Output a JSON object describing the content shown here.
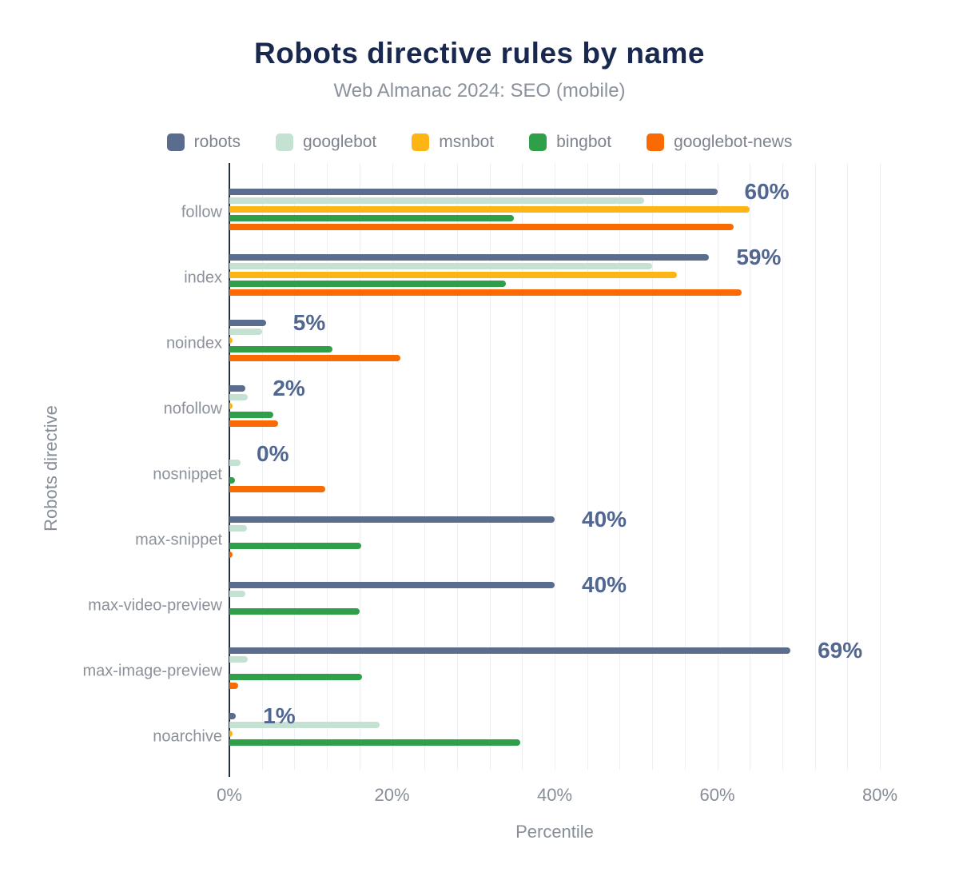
{
  "chart_data": {
    "type": "bar",
    "orientation": "horizontal",
    "title": "Robots directive rules by name",
    "subtitle": "Web Almanac 2024: SEO (mobile)",
    "xlabel": "Percentile",
    "ylabel": "Robots directive",
    "xlim": [
      0,
      86
    ],
    "x_ticks": [
      {
        "label": "0%",
        "value": 0
      },
      {
        "label": "20%",
        "value": 20
      },
      {
        "label": "40%",
        "value": 40
      },
      {
        "label": "60%",
        "value": 60
      },
      {
        "label": "80%",
        "value": 80
      }
    ],
    "grid": "on",
    "gridline_step_pct": 4,
    "legend_position": "top",
    "categories": [
      "follow",
      "index",
      "noindex",
      "nofollow",
      "nosnippet",
      "max-snippet",
      "max-video-preview",
      "max-image-preview",
      "noarchive"
    ],
    "series": [
      {
        "name": "robots",
        "color": "#5b6d8e",
        "values": [
          60,
          59,
          4.5,
          2,
          0,
          40,
          40,
          69,
          0.8
        ]
      },
      {
        "name": "googlebot",
        "color": "#c5e1d2",
        "values": [
          51,
          52,
          4,
          2.3,
          1.4,
          2.2,
          2,
          2.3,
          18.5
        ]
      },
      {
        "name": "msnbot",
        "color": "#fdb515",
        "values": [
          64,
          55,
          0.4,
          0.4,
          0,
          0,
          0,
          0,
          0.4
        ]
      },
      {
        "name": "bingbot",
        "color": "#2f9f49",
        "values": [
          35,
          34,
          12.7,
          5.4,
          0.7,
          16.2,
          16,
          16.3,
          35.8
        ]
      },
      {
        "name": "googlebot-news",
        "color": "#fa6a02",
        "values": [
          62,
          63,
          21,
          6,
          11.8,
          0.4,
          0,
          1.1,
          0
        ]
      }
    ],
    "bar_labels": {
      "labeled_series": "robots",
      "texts": [
        "60%",
        "59%",
        "5%",
        "2%",
        "0%",
        "40%",
        "40%",
        "69%",
        "1%"
      ]
    },
    "colors": {
      "title": "#19284e",
      "subtitle": "#8b929c",
      "axis_text": "#878e98",
      "value_label": "#516690",
      "axis_line": "#25303f",
      "gridline": "#edeff2"
    }
  }
}
